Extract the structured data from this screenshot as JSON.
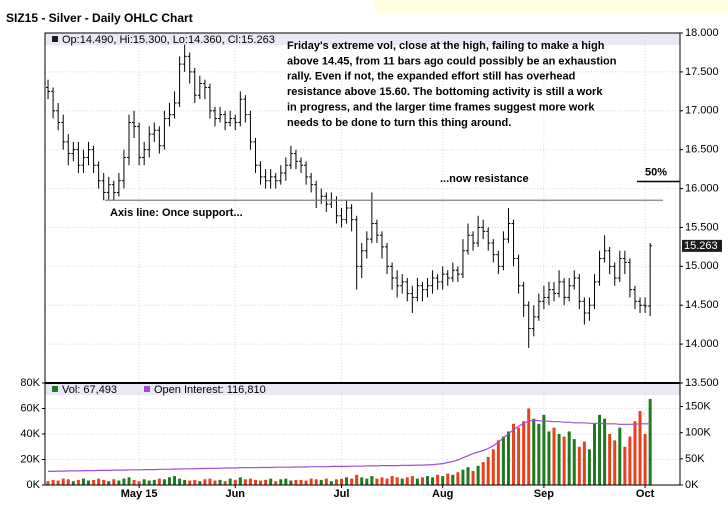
{
  "chart_data": [
    {
      "type": "ohlc",
      "title": "SIZ15 - Silver - Daily OHLC Chart",
      "legend_text": "Op:14.490, Hi:15.300, Lo:14.360, Cl:15.263",
      "color": "#000000",
      "annotations": {
        "comment": [
          "Friday's extreme vol, close at the high, failing to make a high",
          "above 14.45, from 11 bars ago could possibly be an exhaustion",
          "rally.   Even if not, the expanded effort still has overhead",
          "resistance above 15.60.  The bottoming activity is still a work",
          "in progress, and the larger time frames suggest more work",
          "needs to be done to turn this thing around."
        ],
        "resistance": "...now resistance",
        "support": "Axis line: Once support..."
      },
      "reference_lines": [
        {
          "label": null,
          "value": 15.85,
          "color": "#808080"
        },
        {
          "label": "50%",
          "value": 16.09,
          "color": "#000000"
        }
      ],
      "open": [
        17.3,
        17.25,
        17.0,
        16.85,
        16.6,
        16.45,
        16.5,
        16.3,
        16.4,
        16.5,
        16.3,
        16.1,
        15.95,
        16.05,
        15.95,
        16.1,
        16.4,
        16.85,
        16.8,
        16.4,
        16.5,
        16.7,
        16.75,
        16.55,
        16.9,
        16.95,
        17.1,
        17.6,
        17.7,
        17.5,
        17.2,
        17.35,
        17.3,
        17.0,
        16.9,
        16.95,
        16.85,
        16.9,
        16.85,
        17.15,
        16.95,
        16.6,
        16.3,
        16.15,
        16.1,
        16.15,
        16.1,
        16.2,
        16.3,
        16.45,
        16.35,
        16.3,
        16.15,
        16.05,
        15.85,
        15.9,
        15.8,
        15.85,
        15.65,
        15.6,
        15.75,
        15.6,
        15.0,
        15.2,
        15.35,
        15.55,
        15.4,
        15.25,
        15.0,
        14.85,
        14.75,
        14.8,
        14.65,
        14.6,
        14.75,
        14.7,
        14.75,
        14.85,
        14.8,
        14.9,
        14.85,
        14.95,
        14.9,
        15.2,
        15.4,
        15.3,
        15.5,
        15.45,
        15.3,
        15.15,
        15.0,
        15.35,
        15.55,
        15.1,
        14.75,
        14.5,
        14.2,
        14.35,
        14.55,
        14.6,
        14.7,
        14.65,
        14.8,
        14.6,
        14.75,
        14.85,
        14.55,
        14.4,
        14.5,
        14.8,
        15.1,
        15.2,
        15.0,
        14.85,
        15.1,
        15.05,
        14.7,
        14.55,
        14.5,
        14.49
      ],
      "high": [
        17.4,
        17.3,
        17.1,
        16.95,
        16.7,
        16.6,
        16.6,
        16.5,
        16.6,
        16.55,
        16.35,
        16.2,
        16.15,
        16.1,
        16.2,
        16.5,
        16.95,
        17.0,
        16.85,
        16.6,
        16.8,
        16.85,
        16.8,
        17.0,
        17.1,
        17.25,
        17.7,
        17.85,
        17.75,
        17.55,
        17.45,
        17.4,
        17.35,
        17.05,
        17.05,
        17.0,
        17.0,
        16.95,
        17.25,
        17.2,
        17.0,
        16.65,
        16.35,
        16.25,
        16.25,
        16.2,
        16.3,
        16.4,
        16.55,
        16.5,
        16.4,
        16.35,
        16.2,
        16.1,
        16.0,
        15.95,
        15.95,
        15.9,
        15.75,
        15.85,
        15.8,
        15.65,
        15.3,
        15.45,
        15.95,
        15.6,
        15.45,
        15.3,
        15.05,
        14.95,
        14.9,
        14.85,
        14.75,
        14.85,
        14.8,
        14.85,
        14.95,
        14.9,
        15.0,
        14.95,
        15.05,
        15.0,
        15.35,
        15.55,
        15.45,
        15.65,
        15.6,
        15.5,
        15.35,
        15.2,
        15.45,
        15.75,
        15.6,
        15.15,
        14.8,
        14.55,
        14.5,
        14.65,
        14.75,
        14.8,
        14.8,
        14.95,
        14.85,
        14.85,
        14.95,
        14.9,
        14.6,
        14.6,
        14.9,
        15.2,
        15.4,
        15.25,
        15.05,
        15.2,
        15.2,
        15.1,
        14.75,
        14.6,
        14.6,
        15.3
      ],
      "low": [
        17.15,
        16.9,
        16.75,
        16.5,
        16.3,
        16.35,
        16.2,
        16.2,
        16.3,
        16.2,
        16.0,
        15.85,
        15.85,
        15.85,
        15.9,
        16.0,
        16.3,
        16.65,
        16.3,
        16.3,
        16.4,
        16.6,
        16.45,
        16.5,
        16.8,
        16.9,
        17.05,
        17.5,
        17.35,
        17.1,
        17.15,
        17.15,
        16.9,
        16.8,
        16.85,
        16.75,
        16.8,
        16.75,
        16.8,
        16.85,
        16.5,
        16.2,
        16.05,
        16.0,
        16.0,
        16.0,
        16.05,
        16.1,
        16.25,
        16.25,
        16.2,
        16.05,
        15.95,
        15.75,
        15.8,
        15.7,
        15.75,
        15.55,
        15.5,
        15.55,
        15.45,
        14.7,
        14.85,
        15.1,
        15.3,
        15.3,
        15.1,
        14.9,
        14.7,
        14.6,
        14.65,
        14.55,
        14.4,
        14.55,
        14.55,
        14.6,
        14.65,
        14.7,
        14.7,
        14.75,
        14.8,
        14.8,
        14.85,
        15.15,
        15.2,
        15.25,
        15.35,
        15.2,
        15.05,
        14.9,
        14.95,
        15.3,
        15.0,
        14.65,
        14.35,
        13.95,
        14.1,
        14.3,
        14.45,
        14.5,
        14.55,
        14.6,
        14.5,
        14.55,
        14.7,
        14.45,
        14.25,
        14.3,
        14.45,
        14.75,
        15.05,
        14.9,
        14.75,
        14.8,
        14.9,
        14.6,
        14.45,
        14.4,
        14.4,
        14.36
      ],
      "close": [
        17.25,
        17.0,
        16.85,
        16.6,
        16.45,
        16.5,
        16.3,
        16.4,
        16.5,
        16.3,
        16.1,
        15.95,
        16.05,
        15.95,
        16.1,
        16.4,
        16.85,
        16.8,
        16.4,
        16.5,
        16.7,
        16.75,
        16.55,
        16.9,
        16.95,
        17.1,
        17.6,
        17.7,
        17.5,
        17.2,
        17.35,
        17.3,
        17.0,
        16.9,
        16.95,
        16.85,
        16.9,
        16.85,
        17.15,
        16.95,
        16.6,
        16.3,
        16.15,
        16.1,
        16.15,
        16.1,
        16.2,
        16.3,
        16.45,
        16.35,
        16.3,
        16.15,
        16.05,
        15.85,
        15.9,
        15.8,
        15.85,
        15.65,
        15.6,
        15.75,
        15.6,
        15.0,
        15.2,
        15.35,
        15.55,
        15.4,
        15.25,
        15.0,
        14.85,
        14.75,
        14.8,
        14.65,
        14.6,
        14.75,
        14.7,
        14.75,
        14.85,
        14.8,
        14.9,
        14.85,
        14.95,
        14.9,
        15.2,
        15.4,
        15.3,
        15.5,
        15.45,
        15.3,
        15.15,
        15.0,
        15.35,
        15.55,
        15.1,
        14.75,
        14.5,
        14.2,
        14.35,
        14.55,
        14.6,
        14.7,
        14.65,
        14.8,
        14.6,
        14.75,
        14.85,
        14.55,
        14.4,
        14.5,
        14.8,
        15.1,
        15.2,
        15.0,
        14.85,
        15.1,
        15.05,
        14.7,
        14.55,
        14.5,
        14.49,
        15.263
      ],
      "last_value_color": "#1c1c1c",
      "xlim": [
        -0.6,
        124.9
      ],
      "ylim": [
        13.5,
        18
      ],
      "yticks": [
        {
          "value": 13.5,
          "label": "13.500"
        },
        {
          "value": 14,
          "label": "14.000"
        },
        {
          "value": 14.5,
          "label": "14.500"
        },
        {
          "value": 15,
          "label": "15.000"
        },
        {
          "value": 15.5,
          "label": "15.500"
        },
        {
          "value": 16,
          "label": "16.000"
        },
        {
          "value": 16.5,
          "label": "16.500"
        },
        {
          "value": 17,
          "label": "17.000"
        },
        {
          "value": 17.5,
          "label": "17.500"
        },
        {
          "value": 18,
          "label": "18.000"
        }
      ],
      "grid": true
    },
    {
      "type": "volume",
      "series": [
        {
          "name": "Vol: 67,493",
          "color": "#1f7a1f",
          "down_color": "#e8401c",
          "values": [
            3000,
            4000,
            3500,
            5000,
            4500,
            3000,
            4000,
            5000,
            3500,
            4000,
            5000,
            4000,
            3000,
            4500,
            3500,
            5000,
            6000,
            4000,
            3000,
            4500,
            3500,
            4000,
            5000,
            4500,
            6000,
            7000,
            5000,
            4000,
            3500,
            4000,
            3000,
            4500,
            5000,
            3500,
            4000,
            3000,
            5000,
            4000,
            6000,
            4500,
            5000,
            4000,
            3500,
            4000,
            5000,
            3000,
            4500,
            5000,
            3500,
            4000,
            4000,
            3500,
            5000,
            4500,
            4000,
            5000,
            3000,
            4500,
            5000,
            6000,
            5000,
            8000,
            6000,
            5000,
            7000,
            5000,
            6000,
            5000,
            7000,
            6000,
            5000,
            6000,
            7000,
            5000,
            6000,
            7000,
            6000,
            8000,
            7000,
            9000,
            8000,
            10000,
            12000,
            14000,
            11000,
            15000,
            18000,
            22000,
            28000,
            35000,
            38000,
            42000,
            48000,
            45000,
            50000,
            60000,
            52000,
            48000,
            55000,
            42000,
            45000,
            40000,
            38000,
            42000,
            36000,
            30000,
            34000,
            28000,
            48000,
            55000,
            52000,
            40000,
            35000,
            45000,
            30000,
            38000,
            50000,
            58000,
            40000,
            67493
          ]
        },
        {
          "name": "Open Interest: 116,810",
          "color": "#a34ad8",
          "axis": "y2",
          "values": [
            26000,
            26000,
            26500,
            26500,
            27000,
            27000,
            27000,
            27500,
            27500,
            27500,
            28000,
            28000,
            28000,
            28500,
            28500,
            28500,
            29000,
            29000,
            29000,
            29500,
            29500,
            29500,
            30000,
            30000,
            30000,
            30500,
            30500,
            31000,
            31000,
            31000,
            31500,
            31500,
            32000,
            32000,
            32000,
            32500,
            32500,
            32500,
            33000,
            33000,
            33000,
            33000,
            33500,
            33500,
            33500,
            34000,
            34000,
            34000,
            34000,
            34500,
            34500,
            34500,
            35000,
            35000,
            35000,
            35000,
            35500,
            35500,
            35500,
            35500,
            36000,
            36000,
            36000,
            36500,
            36500,
            36500,
            37000,
            37000,
            37000,
            37000,
            37500,
            37500,
            37500,
            38000,
            38000,
            38500,
            39000,
            40000,
            41000,
            43000,
            45000,
            48000,
            52000,
            56000,
            60000,
            63000,
            66000,
            70000,
            75000,
            82000,
            90000,
            98000,
            106000,
            112000,
            118000,
            122000,
            124000,
            123000,
            122000,
            122000,
            121000,
            121000,
            120000,
            120000,
            119000,
            119000,
            119000,
            118000,
            118000,
            118000,
            117000,
            117000,
            117000,
            116000,
            116000,
            116000,
            116500,
            117000,
            117000,
            116810
          ]
        }
      ],
      "xlim": [
        -0.6,
        124.9
      ],
      "xticks": [
        {
          "value": 18,
          "label": "May 15"
        },
        {
          "value": 37,
          "label": "Jun"
        },
        {
          "value": 58,
          "label": "Jul"
        },
        {
          "value": 78,
          "label": "Aug"
        },
        {
          "value": 98,
          "label": "Sep"
        },
        {
          "value": 118,
          "label": "Oct"
        }
      ],
      "ylim": [
        0,
        80000
      ],
      "yticks": [
        {
          "value": 0,
          "label": "0K"
        },
        {
          "value": 20000,
          "label": "20K"
        },
        {
          "value": 40000,
          "label": "40K"
        },
        {
          "value": 60000,
          "label": "60K"
        },
        {
          "value": 80000,
          "label": "80K"
        }
      ],
      "y2lim": [
        0,
        195000
      ],
      "y2ticks": [
        {
          "value": 0,
          "label": "0K"
        },
        {
          "value": 50000,
          "label": "50K"
        },
        {
          "value": 100000,
          "label": "100K"
        },
        {
          "value": 150000,
          "label": "150K"
        }
      ],
      "grid": true
    }
  ]
}
